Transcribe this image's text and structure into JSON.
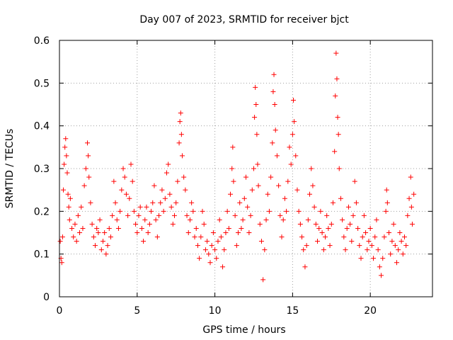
{
  "chart_data": {
    "type": "scatter",
    "title": "Day 007 of 2023, SRMTID for receiver bjct",
    "xlabel": "GPS time / hours",
    "ylabel": "SRMTID / TECUs",
    "xlim": [
      0,
      24
    ],
    "ylim": [
      0,
      0.6
    ],
    "x_ticks": [
      0,
      5,
      10,
      15,
      20
    ],
    "x_tick_labels": [
      "0",
      "5",
      "10",
      "15",
      "20"
    ],
    "y_ticks": [
      0,
      0.1,
      0.2,
      0.3,
      0.4,
      0.5,
      0.6
    ],
    "y_tick_labels": [
      "0",
      "0.1",
      "0.2",
      "0.3",
      "0.4",
      "0.5",
      "0.6"
    ],
    "grid": true,
    "marker": "+",
    "marker_color": "#ff0000",
    "series": [
      {
        "name": "SRMTID",
        "points": [
          [
            0.05,
            0.13
          ],
          [
            0.1,
            0.09
          ],
          [
            0.15,
            0.08
          ],
          [
            0.2,
            0.14
          ],
          [
            0.25,
            0.25
          ],
          [
            0.3,
            0.31
          ],
          [
            0.35,
            0.35
          ],
          [
            0.4,
            0.37
          ],
          [
            0.45,
            0.33
          ],
          [
            0.5,
            0.29
          ],
          [
            0.55,
            0.24
          ],
          [
            0.6,
            0.21
          ],
          [
            0.65,
            0.18
          ],
          [
            0.7,
            0.23
          ],
          [
            0.8,
            0.16
          ],
          [
            0.9,
            0.14
          ],
          [
            1.0,
            0.17
          ],
          [
            1.1,
            0.13
          ],
          [
            1.2,
            0.19
          ],
          [
            1.3,
            0.15
          ],
          [
            1.4,
            0.21
          ],
          [
            1.5,
            0.16
          ],
          [
            1.6,
            0.26
          ],
          [
            1.7,
            0.3
          ],
          [
            1.8,
            0.36
          ],
          [
            1.85,
            0.33
          ],
          [
            1.9,
            0.28
          ],
          [
            2.0,
            0.22
          ],
          [
            2.1,
            0.17
          ],
          [
            2.2,
            0.14
          ],
          [
            2.3,
            0.12
          ],
          [
            2.4,
            0.16
          ],
          [
            2.5,
            0.15
          ],
          [
            2.6,
            0.18
          ],
          [
            2.7,
            0.11
          ],
          [
            2.8,
            0.13
          ],
          [
            2.9,
            0.15
          ],
          [
            3.0,
            0.1
          ],
          [
            3.1,
            0.12
          ],
          [
            3.2,
            0.16
          ],
          [
            3.3,
            0.14
          ],
          [
            3.4,
            0.19
          ],
          [
            3.5,
            0.27
          ],
          [
            3.6,
            0.22
          ],
          [
            3.7,
            0.18
          ],
          [
            3.8,
            0.16
          ],
          [
            3.9,
            0.2
          ],
          [
            4.0,
            0.25
          ],
          [
            4.1,
            0.3
          ],
          [
            4.2,
            0.28
          ],
          [
            4.3,
            0.24
          ],
          [
            4.4,
            0.19
          ],
          [
            4.5,
            0.23
          ],
          [
            4.6,
            0.31
          ],
          [
            4.7,
            0.27
          ],
          [
            4.8,
            0.2
          ],
          [
            4.9,
            0.17
          ],
          [
            5.0,
            0.15
          ],
          [
            5.1,
            0.19
          ],
          [
            5.2,
            0.21
          ],
          [
            5.3,
            0.16
          ],
          [
            5.4,
            0.13
          ],
          [
            5.5,
            0.18
          ],
          [
            5.6,
            0.21
          ],
          [
            5.7,
            0.15
          ],
          [
            5.8,
            0.17
          ],
          [
            5.9,
            0.2
          ],
          [
            6.0,
            0.22
          ],
          [
            6.1,
            0.26
          ],
          [
            6.2,
            0.18
          ],
          [
            6.3,
            0.14
          ],
          [
            6.4,
            0.19
          ],
          [
            6.5,
            0.22
          ],
          [
            6.6,
            0.25
          ],
          [
            6.7,
            0.2
          ],
          [
            6.8,
            0.23
          ],
          [
            6.9,
            0.29
          ],
          [
            7.0,
            0.31
          ],
          [
            7.1,
            0.24
          ],
          [
            7.2,
            0.21
          ],
          [
            7.3,
            0.17
          ],
          [
            7.4,
            0.19
          ],
          [
            7.5,
            0.22
          ],
          [
            7.6,
            0.27
          ],
          [
            7.7,
            0.36
          ],
          [
            7.75,
            0.41
          ],
          [
            7.8,
            0.43
          ],
          [
            7.85,
            0.38
          ],
          [
            7.9,
            0.33
          ],
          [
            8.0,
            0.28
          ],
          [
            8.1,
            0.25
          ],
          [
            8.2,
            0.19
          ],
          [
            8.3,
            0.15
          ],
          [
            8.4,
            0.18
          ],
          [
            8.5,
            0.22
          ],
          [
            8.6,
            0.2
          ],
          [
            8.7,
            0.14
          ],
          [
            8.8,
            0.16
          ],
          [
            8.9,
            0.12
          ],
          [
            9.0,
            0.09
          ],
          [
            9.1,
            0.14
          ],
          [
            9.2,
            0.2
          ],
          [
            9.3,
            0.17
          ],
          [
            9.4,
            0.11
          ],
          [
            9.5,
            0.13
          ],
          [
            9.6,
            0.1
          ],
          [
            9.7,
            0.08
          ],
          [
            9.8,
            0.12
          ],
          [
            9.9,
            0.15
          ],
          [
            10.0,
            0.11
          ],
          [
            10.1,
            0.09
          ],
          [
            10.2,
            0.13
          ],
          [
            10.3,
            0.18
          ],
          [
            10.4,
            0.14
          ],
          [
            10.5,
            0.07
          ],
          [
            10.6,
            0.11
          ],
          [
            10.7,
            0.15
          ],
          [
            10.8,
            0.2
          ],
          [
            10.9,
            0.16
          ],
          [
            11.0,
            0.24
          ],
          [
            11.1,
            0.3
          ],
          [
            11.15,
            0.35
          ],
          [
            11.2,
            0.27
          ],
          [
            11.3,
            0.19
          ],
          [
            11.4,
            0.12
          ],
          [
            11.5,
            0.15
          ],
          [
            11.6,
            0.22
          ],
          [
            11.7,
            0.16
          ],
          [
            11.8,
            0.18
          ],
          [
            11.9,
            0.23
          ],
          [
            12.0,
            0.28
          ],
          [
            12.1,
            0.21
          ],
          [
            12.2,
            0.15
          ],
          [
            12.3,
            0.19
          ],
          [
            12.4,
            0.25
          ],
          [
            12.5,
            0.3
          ],
          [
            12.55,
            0.42
          ],
          [
            12.6,
            0.49
          ],
          [
            12.65,
            0.45
          ],
          [
            12.7,
            0.38
          ],
          [
            12.75,
            0.31
          ],
          [
            12.8,
            0.26
          ],
          [
            12.9,
            0.17
          ],
          [
            13.0,
            0.13
          ],
          [
            13.1,
            0.04
          ],
          [
            13.2,
            0.11
          ],
          [
            13.3,
            0.18
          ],
          [
            13.4,
            0.24
          ],
          [
            13.5,
            0.2
          ],
          [
            13.6,
            0.28
          ],
          [
            13.7,
            0.36
          ],
          [
            13.75,
            0.48
          ],
          [
            13.8,
            0.52
          ],
          [
            13.85,
            0.45
          ],
          [
            13.9,
            0.39
          ],
          [
            14.0,
            0.33
          ],
          [
            14.1,
            0.26
          ],
          [
            14.2,
            0.19
          ],
          [
            14.3,
            0.14
          ],
          [
            14.4,
            0.18
          ],
          [
            14.5,
            0.23
          ],
          [
            14.6,
            0.2
          ],
          [
            14.7,
            0.27
          ],
          [
            14.8,
            0.35
          ],
          [
            14.9,
            0.31
          ],
          [
            15.0,
            0.38
          ],
          [
            15.05,
            0.46
          ],
          [
            15.1,
            0.41
          ],
          [
            15.2,
            0.33
          ],
          [
            15.3,
            0.25
          ],
          [
            15.4,
            0.2
          ],
          [
            15.5,
            0.17
          ],
          [
            15.6,
            0.14
          ],
          [
            15.7,
            0.11
          ],
          [
            15.8,
            0.07
          ],
          [
            15.9,
            0.12
          ],
          [
            16.0,
            0.18
          ],
          [
            16.1,
            0.24
          ],
          [
            16.2,
            0.3
          ],
          [
            16.3,
            0.26
          ],
          [
            16.4,
            0.21
          ],
          [
            16.5,
            0.17
          ],
          [
            16.6,
            0.13
          ],
          [
            16.7,
            0.16
          ],
          [
            16.8,
            0.2
          ],
          [
            16.9,
            0.15
          ],
          [
            17.0,
            0.11
          ],
          [
            17.1,
            0.14
          ],
          [
            17.2,
            0.19
          ],
          [
            17.3,
            0.16
          ],
          [
            17.4,
            0.12
          ],
          [
            17.5,
            0.17
          ],
          [
            17.6,
            0.22
          ],
          [
            17.7,
            0.34
          ],
          [
            17.75,
            0.47
          ],
          [
            17.8,
            0.57
          ],
          [
            17.85,
            0.51
          ],
          [
            17.9,
            0.42
          ],
          [
            17.95,
            0.38
          ],
          [
            18.0,
            0.3
          ],
          [
            18.1,
            0.23
          ],
          [
            18.2,
            0.18
          ],
          [
            18.3,
            0.14
          ],
          [
            18.4,
            0.11
          ],
          [
            18.5,
            0.16
          ],
          [
            18.6,
            0.21
          ],
          [
            18.7,
            0.17
          ],
          [
            18.8,
            0.13
          ],
          [
            18.9,
            0.19
          ],
          [
            19.0,
            0.27
          ],
          [
            19.1,
            0.22
          ],
          [
            19.2,
            0.16
          ],
          [
            19.3,
            0.12
          ],
          [
            19.4,
            0.09
          ],
          [
            19.5,
            0.14
          ],
          [
            19.6,
            0.19
          ],
          [
            19.7,
            0.15
          ],
          [
            19.8,
            0.11
          ],
          [
            19.9,
            0.13
          ],
          [
            20.0,
            0.16
          ],
          [
            20.1,
            0.12
          ],
          [
            20.2,
            0.09
          ],
          [
            20.3,
            0.14
          ],
          [
            20.4,
            0.18
          ],
          [
            20.5,
            0.11
          ],
          [
            20.6,
            0.07
          ],
          [
            20.7,
            0.05
          ],
          [
            20.8,
            0.09
          ],
          [
            20.9,
            0.14
          ],
          [
            21.0,
            0.2
          ],
          [
            21.05,
            0.25
          ],
          [
            21.1,
            0.22
          ],
          [
            21.2,
            0.15
          ],
          [
            21.3,
            0.1
          ],
          [
            21.4,
            0.13
          ],
          [
            21.5,
            0.17
          ],
          [
            21.6,
            0.12
          ],
          [
            21.7,
            0.08
          ],
          [
            21.8,
            0.11
          ],
          [
            21.9,
            0.15
          ],
          [
            22.0,
            0.13
          ],
          [
            22.1,
            0.1
          ],
          [
            22.2,
            0.14
          ],
          [
            22.3,
            0.12
          ],
          [
            22.4,
            0.19
          ],
          [
            22.5,
            0.23
          ],
          [
            22.6,
            0.28
          ],
          [
            22.65,
            0.21
          ],
          [
            22.7,
            0.17
          ],
          [
            22.8,
            0.24
          ]
        ]
      }
    ]
  }
}
